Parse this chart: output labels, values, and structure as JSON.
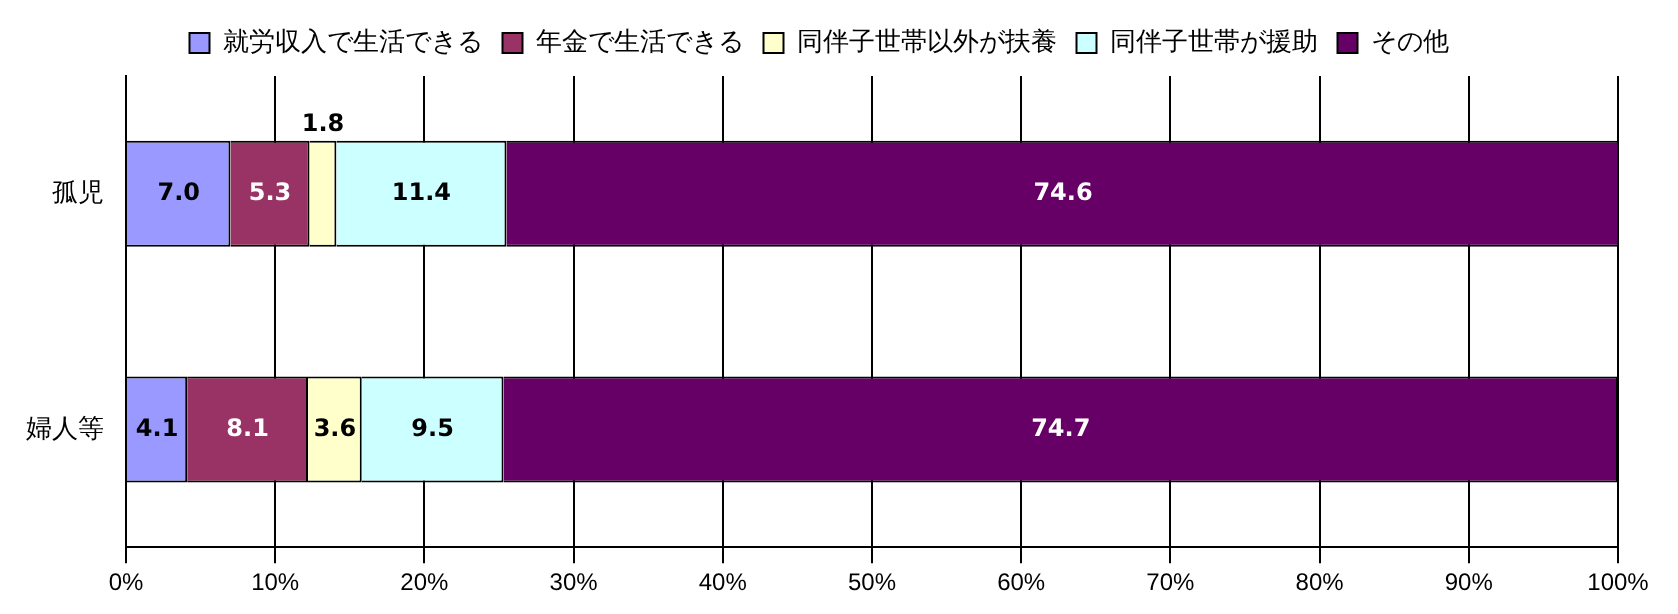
{
  "chart_data": {
    "type": "bar",
    "orientation": "horizontal",
    "stacked": true,
    "categories": [
      "孤児",
      "婦人等"
    ],
    "series": [
      {
        "name": "就労収入で生活できる",
        "color": "#9999ff",
        "values": [
          7.0,
          4.1
        ],
        "value_labels": [
          "7.0",
          "4.1"
        ]
      },
      {
        "name": "年金で生活できる",
        "color": "#993366",
        "values": [
          5.3,
          8.1
        ],
        "value_labels": [
          "5.3",
          "8.1"
        ]
      },
      {
        "name": "同伴子世帯以外が扶養",
        "color": "#ffffcc",
        "values": [
          1.8,
          3.6
        ],
        "value_labels": [
          "1.8",
          "3.6"
        ]
      },
      {
        "name": "同伴子世帯が援助",
        "color": "#ccffff",
        "values": [
          11.4,
          9.5
        ],
        "value_labels": [
          "11.4",
          "9.5"
        ]
      },
      {
        "name": "その他",
        "color": "#660066",
        "values": [
          74.6,
          74.7
        ],
        "value_labels": [
          "74.6",
          "74.7"
        ]
      }
    ],
    "xlim": [
      0,
      100
    ],
    "xticks": [
      {
        "value": 0,
        "label": "0%"
      },
      {
        "value": 10,
        "label": "10%"
      },
      {
        "value": 20,
        "label": "20%"
      },
      {
        "value": 30,
        "label": "30%"
      },
      {
        "value": 40,
        "label": "40%"
      },
      {
        "value": 50,
        "label": "50%"
      },
      {
        "value": 60,
        "label": "60%"
      },
      {
        "value": 70,
        "label": "70%"
      },
      {
        "value": 80,
        "label": "80%"
      },
      {
        "value": 90,
        "label": "90%"
      },
      {
        "value": 100,
        "label": "100%"
      }
    ],
    "grid": "x",
    "legend": "top"
  }
}
